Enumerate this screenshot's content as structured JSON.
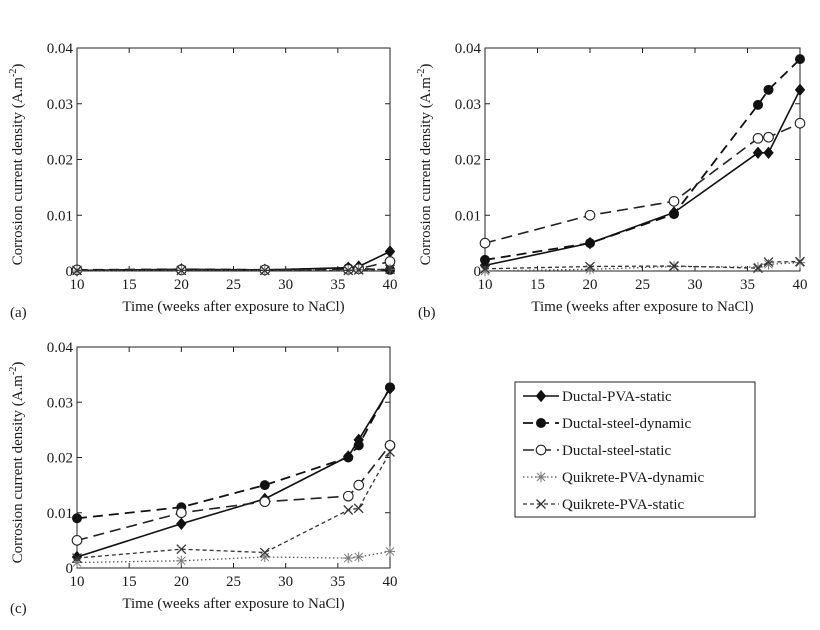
{
  "chart_data": [
    {
      "panel_label": "(a)",
      "type": "line",
      "title": "",
      "xlabel": "Time (weeks after exposure to NaCl)",
      "ylabel": "Corrosion current density (A.m",
      "ylabel_sup": "-2",
      "ylabel_end": ")",
      "xlim": [
        10,
        40
      ],
      "ylim": [
        0,
        0.04
      ],
      "xticks": [
        "10",
        "15",
        "20",
        "25",
        "30",
        "35",
        "40"
      ],
      "yticks": [
        "0",
        "0.01",
        "0.02",
        "0.03",
        "0.04"
      ],
      "series": [
        {
          "name": "Ductal-PVA-static",
          "x": [
            10,
            20,
            28,
            36,
            37,
            40
          ],
          "y": [
            0.0001,
            0.0003,
            0.0002,
            0.0006,
            0.0008,
            0.0035
          ]
        },
        {
          "name": "Ductal-steel-dynamic",
          "x": [
            10,
            20,
            28,
            36,
            37,
            40
          ],
          "y": [
            0.0002,
            0.0003,
            0.0002,
            0.0005,
            0.0004,
            0.0002
          ]
        },
        {
          "name": "Ductal-steel-static",
          "x": [
            10,
            20,
            28,
            36,
            37,
            40
          ],
          "y": [
            0.0002,
            0.0002,
            0.0002,
            0.0003,
            0.0004,
            0.0017
          ]
        },
        {
          "name": "Quikrete-PVA-dynamic",
          "x": [
            10,
            20,
            28,
            36,
            37,
            40
          ],
          "y": [
            0.0,
            0.0001,
            0.0001,
            0.0001,
            0.0002,
            0.0003
          ]
        },
        {
          "name": "Quikrete-PVA-static",
          "x": [
            10,
            20,
            28,
            36,
            37,
            40
          ],
          "y": [
            0.0001,
            0.0001,
            0.0001,
            0.0001,
            0.0002,
            0.0003
          ]
        }
      ]
    },
    {
      "panel_label": "(b)",
      "type": "line",
      "title": "",
      "xlabel": "Time (weeks after exposure to NaCl)",
      "ylabel": "Corrosion current density (A.m",
      "ylabel_sup": "-2",
      "ylabel_end": ")",
      "xlim": [
        10,
        40
      ],
      "ylim": [
        0,
        0.04
      ],
      "xticks": [
        "10",
        "15",
        "20",
        "25",
        "30",
        "35",
        "40"
      ],
      "yticks": [
        "0",
        "0.01",
        "0.02",
        "0.03",
        "0.04"
      ],
      "series": [
        {
          "name": "Ductal-PVA-static",
          "x": [
            10,
            20,
            28,
            36,
            37,
            40
          ],
          "y": [
            0.001,
            0.005,
            0.0105,
            0.0212,
            0.0212,
            0.0325
          ]
        },
        {
          "name": "Ductal-steel-dynamic",
          "x": [
            10,
            20,
            28,
            36,
            37,
            40
          ],
          "y": [
            0.002,
            0.005,
            0.0102,
            0.0298,
            0.0325,
            0.038
          ]
        },
        {
          "name": "Ductal-steel-static",
          "x": [
            10,
            20,
            28,
            36,
            37,
            40
          ],
          "y": [
            0.005,
            0.01,
            0.0125,
            0.0238,
            0.024,
            0.0265
          ]
        },
        {
          "name": "Quikrete-PVA-dynamic",
          "x": [
            10,
            20,
            28,
            36,
            37,
            40
          ],
          "y": [
            0.0,
            0.0003,
            0.0008,
            0.0007,
            0.0012,
            0.0015
          ]
        },
        {
          "name": "Quikrete-PVA-static",
          "x": [
            10,
            20,
            28,
            36,
            37,
            40
          ],
          "y": [
            0.0004,
            0.0008,
            0.0009,
            0.0005,
            0.0016,
            0.0017
          ]
        }
      ]
    },
    {
      "panel_label": "(c)",
      "type": "line",
      "title": "",
      "xlabel": "Time (weeks after exposure to NaCl)",
      "ylabel": "Corrosion current density (A.m",
      "ylabel_sup": "-2",
      "ylabel_end": ")",
      "xlim": [
        10,
        40
      ],
      "ylim": [
        0,
        0.04
      ],
      "xticks": [
        "10",
        "15",
        "20",
        "25",
        "30",
        "35",
        "40"
      ],
      "yticks": [
        "0",
        "0.01",
        "0.02",
        "0.03",
        "0.04"
      ],
      "series": [
        {
          "name": "Ductal-PVA-static",
          "x": [
            10,
            20,
            28,
            36,
            37,
            40
          ],
          "y": [
            0.002,
            0.008,
            0.0125,
            0.0202,
            0.0232,
            0.0325
          ]
        },
        {
          "name": "Ductal-steel-dynamic",
          "x": [
            10,
            20,
            28,
            36,
            37,
            40
          ],
          "y": [
            0.009,
            0.011,
            0.015,
            0.02,
            0.0222,
            0.0327
          ]
        },
        {
          "name": "Ductal-steel-static",
          "x": [
            10,
            20,
            28,
            36,
            37,
            40
          ],
          "y": [
            0.005,
            0.01,
            0.012,
            0.013,
            0.015,
            0.0222
          ]
        },
        {
          "name": "Quikrete-PVA-dynamic",
          "x": [
            10,
            20,
            28,
            36,
            37,
            40
          ],
          "y": [
            0.001,
            0.0013,
            0.002,
            0.0018,
            0.002,
            0.003
          ]
        },
        {
          "name": "Quikrete-PVA-static",
          "x": [
            10,
            20,
            28,
            36,
            37,
            40
          ],
          "y": [
            0.0018,
            0.0034,
            0.0028,
            0.0105,
            0.0108,
            0.021
          ]
        }
      ]
    }
  ],
  "legend": [
    {
      "label": "Ductal-PVA-static",
      "marker": "diamond-filled",
      "dash": "solid"
    },
    {
      "label": "Ductal-steel-dynamic",
      "marker": "circle-filled",
      "dash": "long-dash"
    },
    {
      "label": "Ductal-steel-static",
      "marker": "circle-open",
      "dash": "long-dash"
    },
    {
      "label": "Quikrete-PVA-dynamic",
      "marker": "star",
      "dash": "dotted"
    },
    {
      "label": "Quikrete-PVA-static",
      "marker": "x",
      "dash": "short-dash"
    }
  ]
}
